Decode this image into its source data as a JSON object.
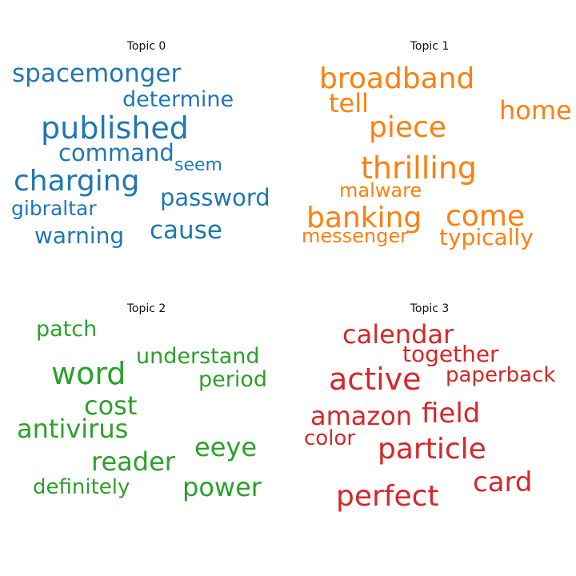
{
  "chart_data": {
    "type": "wordcloud",
    "panels": [
      {
        "title": "Topic 0",
        "color": "#1f77b4",
        "words": [
          "spacemonger",
          "determine",
          "published",
          "command",
          "seem",
          "charging",
          "password",
          "gibraltar",
          "cause",
          "warning"
        ]
      },
      {
        "title": "Topic 1",
        "color": "#ff7f0e",
        "words": [
          "broadband",
          "tell",
          "home",
          "piece",
          "thrilling",
          "malware",
          "banking",
          "come",
          "messenger",
          "typically"
        ]
      },
      {
        "title": "Topic 2",
        "color": "#2ca02c",
        "words": [
          "patch",
          "understand",
          "word",
          "period",
          "cost",
          "antivirus",
          "eeye",
          "reader",
          "definitely",
          "power"
        ]
      },
      {
        "title": "Topic 3",
        "color": "#d62728",
        "words": [
          "calendar",
          "together",
          "active",
          "paperback",
          "field",
          "amazon",
          "color",
          "particle",
          "card",
          "perfect"
        ]
      }
    ]
  }
}
